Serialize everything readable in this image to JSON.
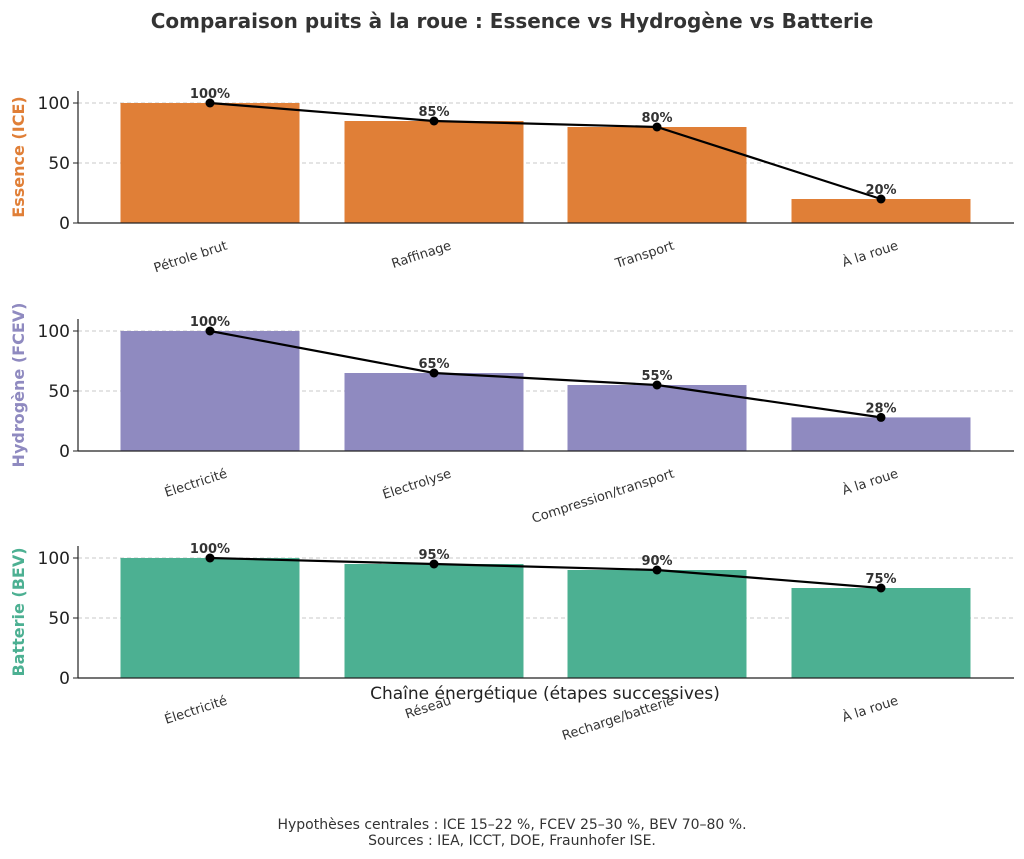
{
  "title": "Comparaison puits à la roue : Essence vs Hydrogène vs Batterie",
  "xlabel": "Chaîne énergétique (étapes successives)",
  "footnote": [
    "Hypothèses centrales : ICE 15–22 %, FCEV 25–30 %, BEV 70–80 %.",
    "Sources : IEA, ICCT, DOE, Fraunhofer ISE."
  ],
  "chart_data": [
    {
      "type": "bar",
      "ylabel": "Essence (ICE)",
      "color": "#e07f37",
      "categories": [
        "Pétrole brut",
        "Raffinage",
        "Transport",
        "À la roue"
      ],
      "values": [
        100,
        85,
        80,
        20
      ],
      "value_labels": [
        "100%",
        "85%",
        "80%",
        "20%"
      ],
      "yticks": [
        "0",
        "50",
        "100"
      ],
      "ylim": [
        0,
        110
      ],
      "grid": "y dashed",
      "overlay_line": "black line with markers"
    },
    {
      "type": "bar",
      "ylabel": "Hydrogène (FCEV)",
      "color": "#8f8ac0",
      "categories": [
        "Électricité",
        "Électrolyse",
        "Compression/transport",
        "À la roue"
      ],
      "values": [
        100,
        65,
        55,
        28
      ],
      "value_labels": [
        "100%",
        "65%",
        "55%",
        "28%"
      ],
      "yticks": [
        "0",
        "50",
        "100"
      ],
      "ylim": [
        0,
        110
      ],
      "grid": "y dashed",
      "overlay_line": "black line with markers"
    },
    {
      "type": "bar",
      "ylabel": "Batterie (BEV)",
      "color": "#4cb092",
      "categories": [
        "Électricité",
        "Réseau",
        "Recharge/batterie",
        "À la roue"
      ],
      "values": [
        100,
        95,
        90,
        75
      ],
      "value_labels": [
        "100%",
        "95%",
        "90%",
        "75%"
      ],
      "yticks": [
        "0",
        "50",
        "100"
      ],
      "ylim": [
        0,
        110
      ],
      "grid": "y dashed",
      "overlay_line": "black line with markers"
    }
  ]
}
